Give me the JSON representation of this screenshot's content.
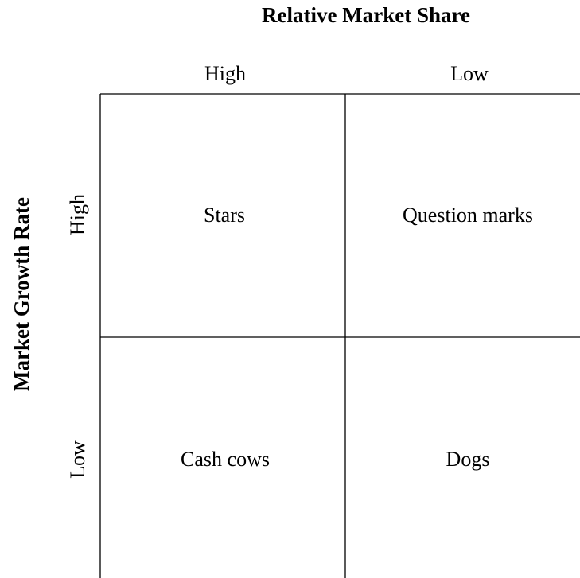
{
  "matrix": {
    "title": "Relative Market Share",
    "y_title": "Market Growth Rate",
    "columns": [
      "High",
      "Low"
    ],
    "rows": [
      "High",
      "Low"
    ],
    "cells": [
      [
        "Stars",
        "Question marks"
      ],
      [
        "Cash cows",
        "Dogs"
      ]
    ]
  }
}
